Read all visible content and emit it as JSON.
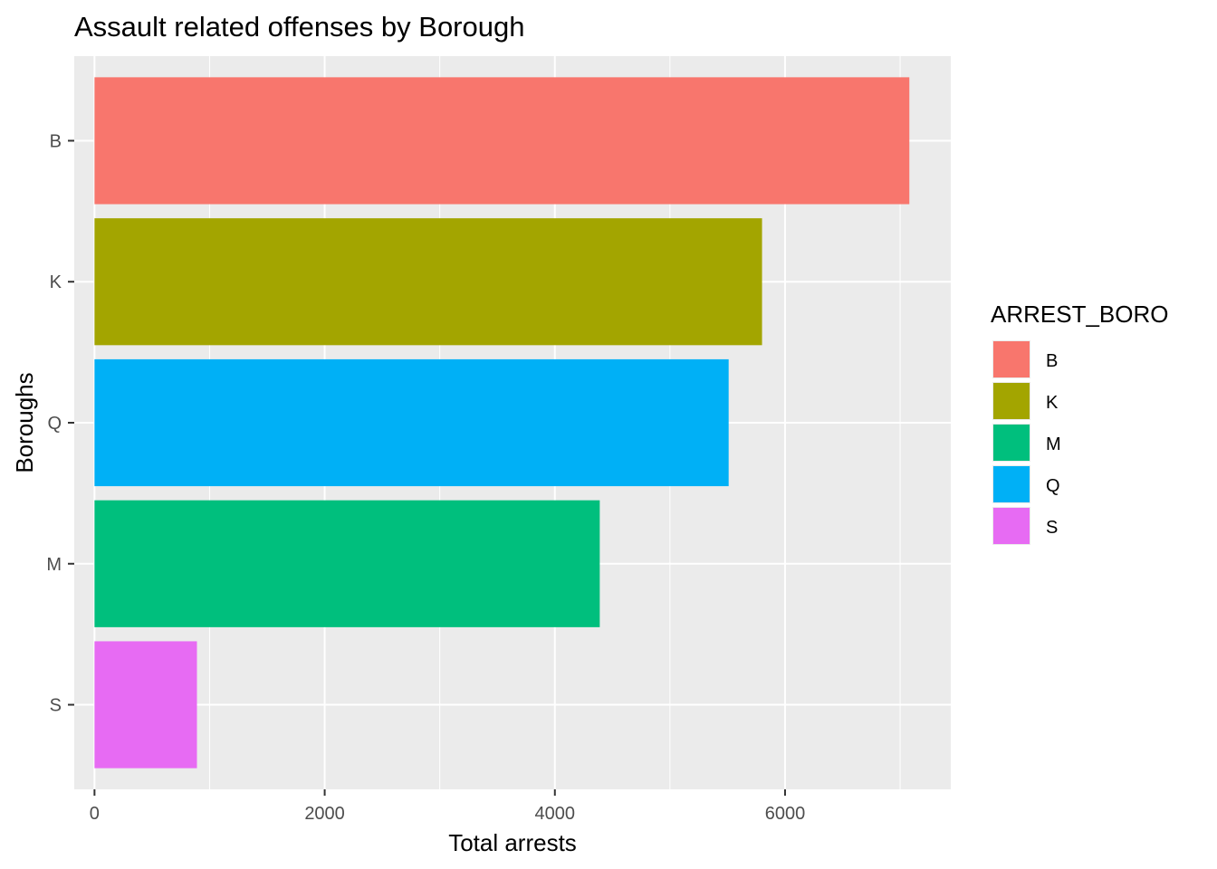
{
  "chart_data": {
    "type": "bar",
    "orientation": "horizontal",
    "title": "Assault related offenses by Borough",
    "xlabel": "Total arrests",
    "ylabel": "Boroughs",
    "categories": [
      "B",
      "K",
      "Q",
      "M",
      "S"
    ],
    "values": [
      7080,
      5800,
      5510,
      4390,
      890
    ],
    "colors": [
      "#F8766D",
      "#A3A500",
      "#00B0F6",
      "#00BF7D",
      "#E76BF3"
    ],
    "xlim": [
      -176,
      7440
    ],
    "xticks": [
      0,
      2000,
      4000,
      6000
    ],
    "xtick_labels": [
      "0",
      "2000",
      "4000",
      "6000"
    ],
    "grid": true,
    "legend": {
      "title": "ARREST_BORO",
      "position": "right",
      "entries": [
        {
          "label": "B",
          "color": "#F8766D"
        },
        {
          "label": "K",
          "color": "#A3A500"
        },
        {
          "label": "M",
          "color": "#00BF7D"
        },
        {
          "label": "Q",
          "color": "#00B0F6"
        },
        {
          "label": "S",
          "color": "#E76BF3"
        }
      ]
    },
    "panel_background": "#EBEBEB",
    "gridline_color": "#FFFFFF"
  }
}
